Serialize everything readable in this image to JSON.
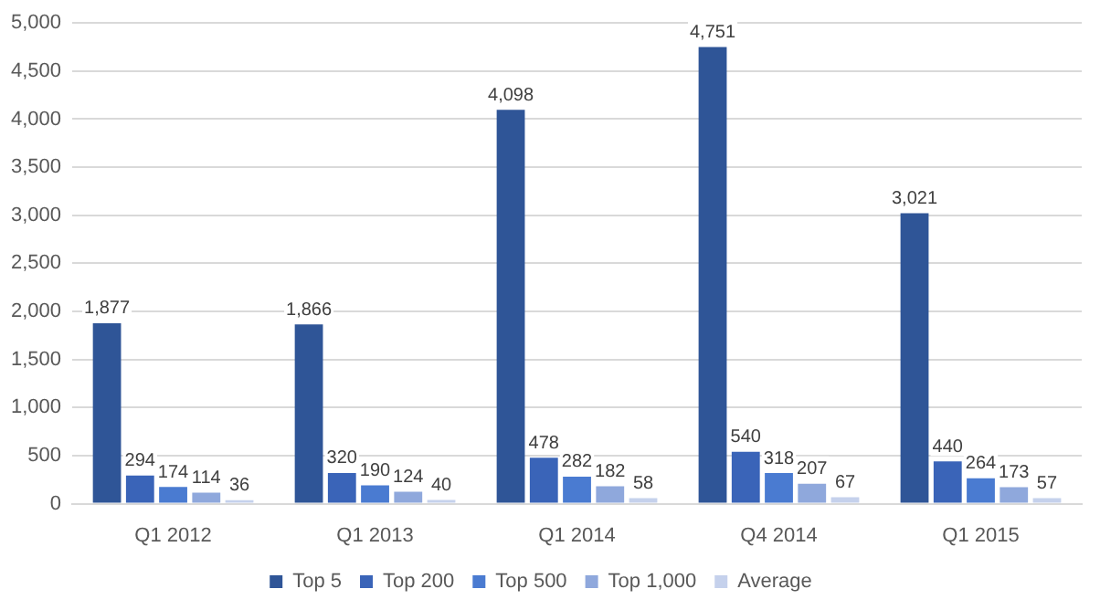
{
  "chart_data": {
    "type": "bar",
    "categories": [
      "Q1 2012",
      "Q1 2013",
      "Q1 2014",
      "Q4 2014",
      "Q1 2015"
    ],
    "series": [
      {
        "name": "Top 5",
        "color": "#2f5597",
        "values": [
          1877,
          1866,
          4098,
          4751,
          3021
        ],
        "value_labels": [
          "1,877",
          "1,866",
          "4,098",
          "4,751",
          "3,021"
        ]
      },
      {
        "name": "Top 200",
        "color": "#3a64b8",
        "values": [
          294,
          320,
          478,
          540,
          440
        ],
        "value_labels": [
          "294",
          "320",
          "478",
          "540",
          "440"
        ]
      },
      {
        "name": "Top 500",
        "color": "#4a7bd1",
        "values": [
          174,
          190,
          282,
          318,
          264
        ],
        "value_labels": [
          "174",
          "190",
          "282",
          "318",
          "264"
        ]
      },
      {
        "name": "Top 1,000",
        "color": "#8fa8dc",
        "values": [
          114,
          124,
          182,
          207,
          173
        ],
        "value_labels": [
          "114",
          "124",
          "182",
          "207",
          "173"
        ]
      },
      {
        "name": "Average",
        "color": "#c5d1ec",
        "values": [
          36,
          40,
          58,
          67,
          57
        ],
        "value_labels": [
          "36",
          "40",
          "58",
          "67",
          "57"
        ]
      }
    ],
    "ylim": [
      0,
      5000
    ],
    "yticks": [
      {
        "value": 0,
        "label": "0"
      },
      {
        "value": 500,
        "label": "500"
      },
      {
        "value": 1000,
        "label": "1,000"
      },
      {
        "value": 1500,
        "label": "1,500"
      },
      {
        "value": 2000,
        "label": "2,000"
      },
      {
        "value": 2500,
        "label": "2,500"
      },
      {
        "value": 3000,
        "label": "3,000"
      },
      {
        "value": 3500,
        "label": "3,500"
      },
      {
        "value": 4000,
        "label": "4,000"
      },
      {
        "value": 4500,
        "label": "4,500"
      },
      {
        "value": 5000,
        "label": "5,000"
      }
    ],
    "grid": "y",
    "legend": "bottom"
  }
}
